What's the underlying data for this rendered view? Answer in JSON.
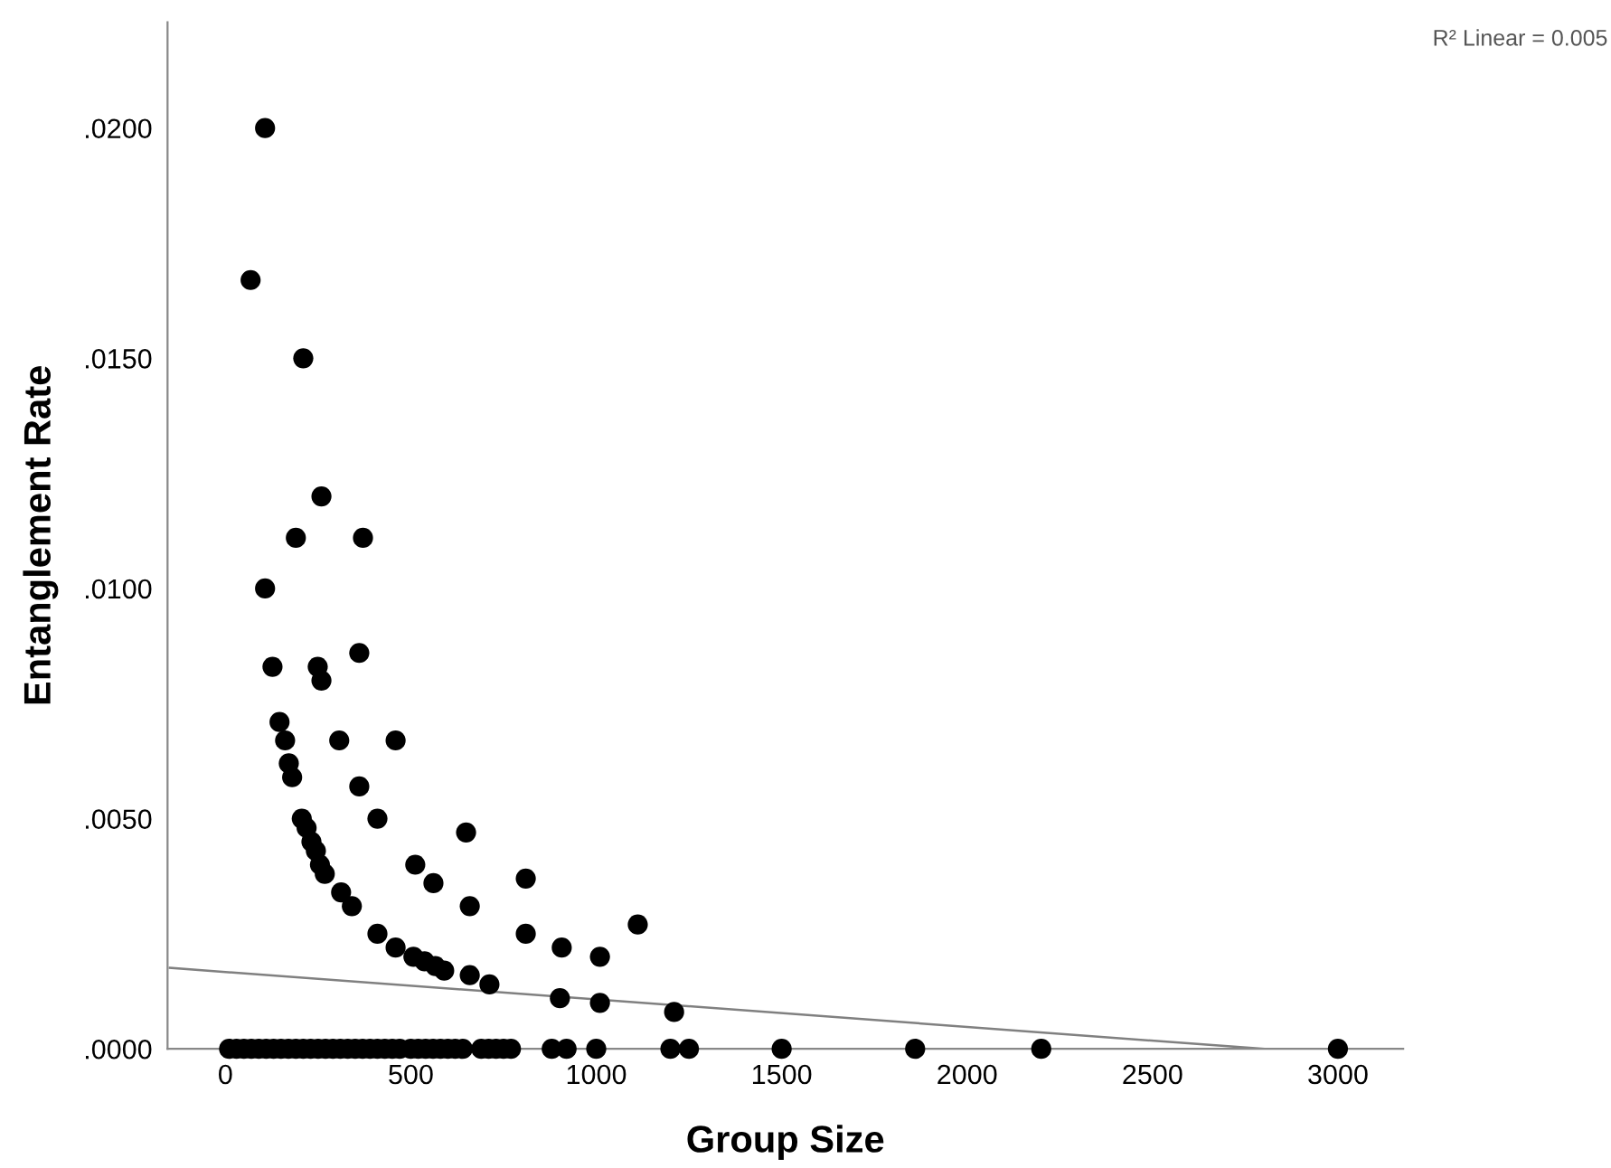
{
  "chart_data": {
    "type": "scatter",
    "xlabel": "Group Size",
    "ylabel": "Entanglement Rate",
    "annotations": [
      "R² Linear = 0.005"
    ],
    "xlim": [
      -156,
      3176
    ],
    "ylim": [
      0,
      0.0223
    ],
    "xticks": [
      0,
      500,
      1000,
      1500,
      2000,
      2500,
      3000
    ],
    "yticks": [
      {
        "value": 0,
        "label": ".0000"
      },
      {
        "value": 0.005,
        "label": ".0050"
      },
      {
        "value": 0.01,
        "label": ".0100"
      },
      {
        "value": 0.015,
        "label": ".0150"
      },
      {
        "value": 0.02,
        "label": ".0200"
      }
    ],
    "grid": false,
    "marker": "circle",
    "series": [
      {
        "color": "#000000",
        "x": [
          107,
          68,
          210,
          259,
          190,
          371,
          107,
          127,
          249,
          259,
          361,
          146,
          161,
          171,
          180,
          307,
          459,
          361,
          410,
          206,
          219,
          232,
          244,
          255,
          268,
          312,
          341,
          649,
          512,
          561,
          659,
          810,
          810,
          907,
          1010,
          1112,
          410,
          459,
          507,
          537,
          566,
          590,
          659,
          712,
          902,
          1010,
          1210,
          10,
          30,
          50,
          70,
          90,
          110,
          130,
          150,
          170,
          190,
          210,
          230,
          250,
          270,
          290,
          310,
          330,
          350,
          370,
          390,
          410,
          430,
          450,
          470,
          500,
          520,
          540,
          560,
          580,
          600,
          620,
          640,
          690,
          710,
          730,
          750,
          770,
          880,
          920,
          1000,
          1200,
          1250,
          1500,
          1860,
          2200,
          3000
        ],
        "values": [
          0.02,
          0.0167,
          0.015,
          0.012,
          0.0111,
          0.0111,
          0.01,
          0.0083,
          0.0083,
          0.008,
          0.0086,
          0.0071,
          0.0067,
          0.0062,
          0.0059,
          0.0067,
          0.0067,
          0.0057,
          0.005,
          0.005,
          0.0048,
          0.0045,
          0.0043,
          0.004,
          0.0038,
          0.0034,
          0.0031,
          0.0047,
          0.004,
          0.0036,
          0.0031,
          0.0037,
          0.0025,
          0.0022,
          0.002,
          0.0027,
          0.0025,
          0.0022,
          0.002,
          0.0019,
          0.0018,
          0.0017,
          0.0016,
          0.0014,
          0.0011,
          0.001,
          0.0008,
          0,
          0,
          0,
          0,
          0,
          0,
          0,
          0,
          0,
          0,
          0,
          0,
          0,
          0,
          0,
          0,
          0,
          0,
          0,
          0,
          0,
          0,
          0,
          0,
          0,
          0,
          0,
          0,
          0,
          0,
          0,
          0,
          0,
          0,
          0,
          0,
          0,
          0,
          0,
          0,
          0,
          0,
          0,
          0,
          0,
          0
        ]
      },
      {
        "type": "line",
        "color": "#808080",
        "marker": "none",
        "x": [
          -150,
          2800
        ],
        "values": [
          0.00176,
          0
        ]
      }
    ]
  }
}
